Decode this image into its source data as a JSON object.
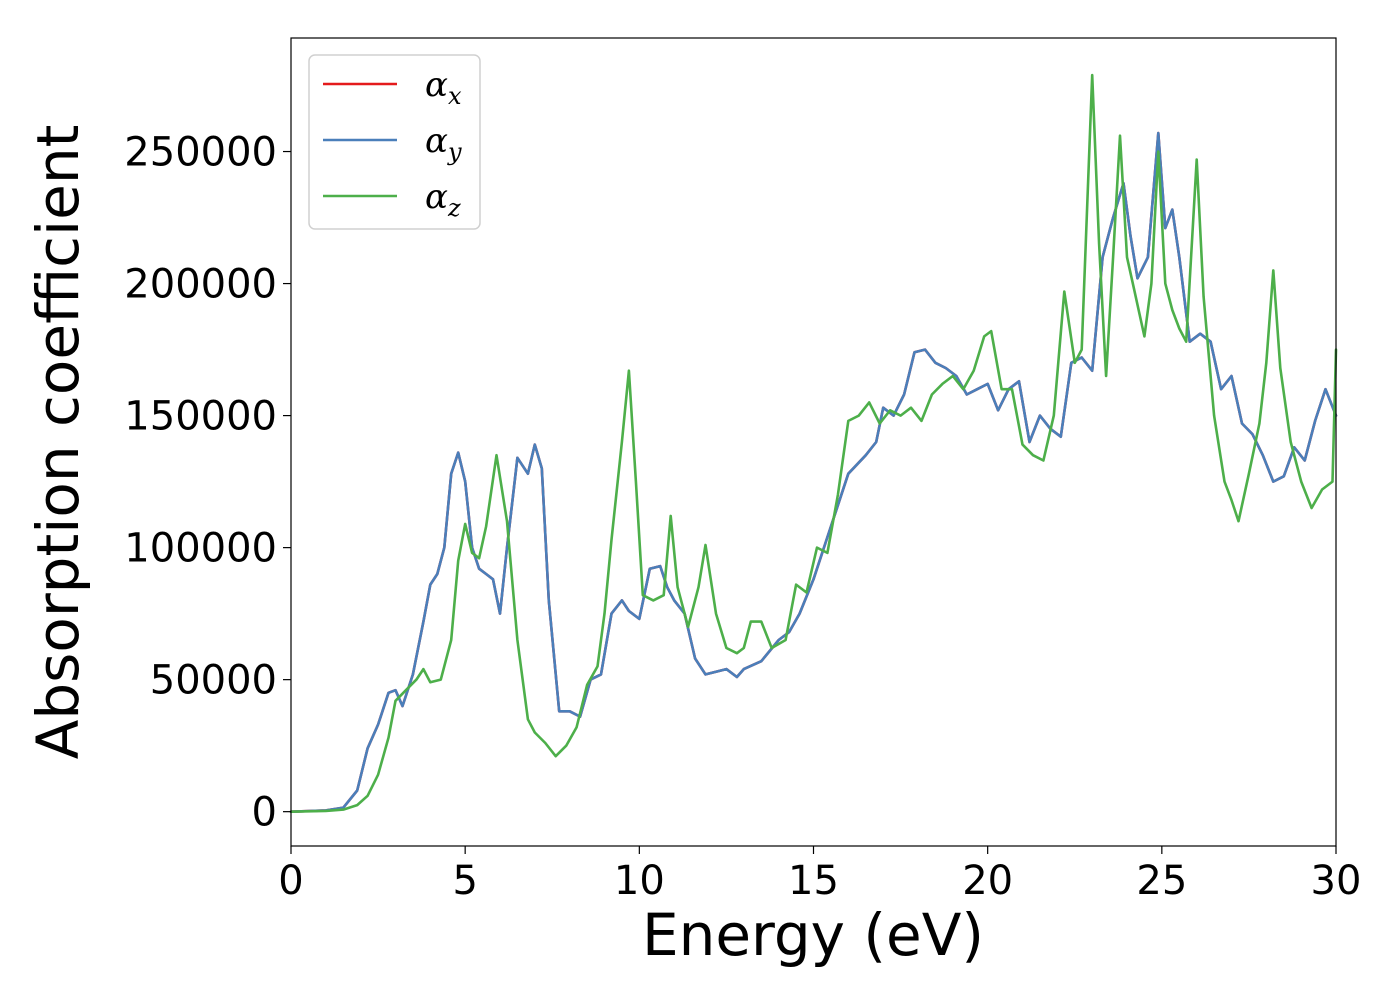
{
  "chart_data": {
    "type": "line",
    "title": "",
    "xlabel": "Energy (eV)",
    "ylabel": "Absorption coefficient",
    "xlim": [
      0,
      30
    ],
    "ylim": [
      -13000,
      293000
    ],
    "xticks": [
      0,
      5,
      10,
      15,
      20,
      25,
      30
    ],
    "xtick_labels": [
      "0",
      "5",
      "10",
      "15",
      "20",
      "25",
      "30"
    ],
    "yticks": [
      0,
      50000,
      100000,
      150000,
      200000,
      250000
    ],
    "ytick_labels": [
      "0",
      "50000",
      "100000",
      "150000",
      "200000",
      "250000"
    ],
    "grid": false,
    "legend_position": "upper-left",
    "colors": {
      "alpha_x": "#e41a1c",
      "alpha_y": "#4a7fba",
      "alpha_z": "#4daf4a"
    },
    "series": [
      {
        "name": "α_x",
        "legend_base": "α",
        "legend_sub": "x",
        "color": "#e41a1c",
        "x": [
          0,
          1,
          1.5,
          1.9,
          2.2,
          2.5,
          2.8,
          3.0,
          3.2,
          3.5,
          3.8,
          4.0,
          4.2,
          4.4,
          4.6,
          4.8,
          5.0,
          5.2,
          5.4,
          5.6,
          5.8,
          6.0,
          6.2,
          6.5,
          6.8,
          7.0,
          7.2,
          7.4,
          7.7,
          8.0,
          8.3,
          8.6,
          8.9,
          9.2,
          9.5,
          9.7,
          10.0,
          10.3,
          10.6,
          10.8,
          11.0,
          11.3,
          11.6,
          11.9,
          12.2,
          12.5,
          12.8,
          13.0,
          13.5,
          14.0,
          14.3,
          14.6,
          15.0,
          15.5,
          16.0,
          16.5,
          16.8,
          17.0,
          17.3,
          17.6,
          17.9,
          18.2,
          18.5,
          18.8,
          19.1,
          19.4,
          19.7,
          20.0,
          20.3,
          20.6,
          20.9,
          21.2,
          21.5,
          21.8,
          22.1,
          22.4,
          22.7,
          23.0,
          23.3,
          23.6,
          23.9,
          24.1,
          24.3,
          24.6,
          24.9,
          25.1,
          25.3,
          25.5,
          25.8,
          26.1,
          26.4,
          26.7,
          27.0,
          27.3,
          27.6,
          27.9,
          28.2,
          28.5,
          28.8,
          29.1,
          29.4,
          29.7,
          30.0
        ],
        "y": [
          0,
          500,
          1500,
          8000,
          24000,
          33000,
          45000,
          46000,
          40000,
          52000,
          72000,
          86000,
          90000,
          100000,
          128000,
          136000,
          125000,
          100000,
          92000,
          90000,
          88000,
          75000,
          100000,
          134000,
          128000,
          139000,
          130000,
          80000,
          38000,
          38000,
          36000,
          50000,
          52000,
          75000,
          80000,
          76000,
          73000,
          92000,
          93000,
          85000,
          80000,
          75000,
          58000,
          52000,
          53000,
          54000,
          51000,
          54000,
          57000,
          65000,
          68000,
          75000,
          88000,
          108000,
          128000,
          135000,
          140000,
          153000,
          150000,
          158000,
          174000,
          175000,
          170000,
          168000,
          165000,
          158000,
          160000,
          162000,
          152000,
          160000,
          163000,
          140000,
          150000,
          145000,
          142000,
          170000,
          172000,
          167000,
          210000,
          225000,
          238000,
          218000,
          202000,
          210000,
          257000,
          221000,
          228000,
          210000,
          178000,
          181000,
          178000,
          160000,
          165000,
          147000,
          143000,
          135000,
          125000,
          127000,
          138000,
          133000,
          148000,
          160000,
          150000
        ]
      },
      {
        "name": "α_y",
        "legend_base": "α",
        "legend_sub": "y",
        "color": "#4a7fba",
        "x": [
          0,
          1,
          1.5,
          1.9,
          2.2,
          2.5,
          2.8,
          3.0,
          3.2,
          3.5,
          3.8,
          4.0,
          4.2,
          4.4,
          4.6,
          4.8,
          5.0,
          5.2,
          5.4,
          5.6,
          5.8,
          6.0,
          6.2,
          6.5,
          6.8,
          7.0,
          7.2,
          7.4,
          7.7,
          8.0,
          8.3,
          8.6,
          8.9,
          9.2,
          9.5,
          9.7,
          10.0,
          10.3,
          10.6,
          10.8,
          11.0,
          11.3,
          11.6,
          11.9,
          12.2,
          12.5,
          12.8,
          13.0,
          13.5,
          14.0,
          14.3,
          14.6,
          15.0,
          15.5,
          16.0,
          16.5,
          16.8,
          17.0,
          17.3,
          17.6,
          17.9,
          18.2,
          18.5,
          18.8,
          19.1,
          19.4,
          19.7,
          20.0,
          20.3,
          20.6,
          20.9,
          21.2,
          21.5,
          21.8,
          22.1,
          22.4,
          22.7,
          23.0,
          23.3,
          23.6,
          23.9,
          24.1,
          24.3,
          24.6,
          24.9,
          25.1,
          25.3,
          25.5,
          25.8,
          26.1,
          26.4,
          26.7,
          27.0,
          27.3,
          27.6,
          27.9,
          28.2,
          28.5,
          28.8,
          29.1,
          29.4,
          29.7,
          30.0
        ],
        "y": [
          0,
          500,
          1500,
          8000,
          24000,
          33000,
          45000,
          46000,
          40000,
          52000,
          72000,
          86000,
          90000,
          100000,
          128000,
          136000,
          125000,
          100000,
          92000,
          90000,
          88000,
          75000,
          100000,
          134000,
          128000,
          139000,
          130000,
          80000,
          38000,
          38000,
          36000,
          50000,
          52000,
          75000,
          80000,
          76000,
          73000,
          92000,
          93000,
          85000,
          80000,
          75000,
          58000,
          52000,
          53000,
          54000,
          51000,
          54000,
          57000,
          65000,
          68000,
          75000,
          88000,
          108000,
          128000,
          135000,
          140000,
          153000,
          150000,
          158000,
          174000,
          175000,
          170000,
          168000,
          165000,
          158000,
          160000,
          162000,
          152000,
          160000,
          163000,
          140000,
          150000,
          145000,
          142000,
          170000,
          172000,
          167000,
          210000,
          225000,
          238000,
          218000,
          202000,
          210000,
          257000,
          221000,
          228000,
          210000,
          178000,
          181000,
          178000,
          160000,
          165000,
          147000,
          143000,
          135000,
          125000,
          127000,
          138000,
          133000,
          148000,
          160000,
          150000
        ]
      },
      {
        "name": "α_z",
        "legend_base": "α",
        "legend_sub": "z",
        "color": "#4daf4a",
        "x": [
          0,
          1,
          1.5,
          1.9,
          2.2,
          2.5,
          2.8,
          3.0,
          3.3,
          3.6,
          3.8,
          4.0,
          4.3,
          4.6,
          4.8,
          5.0,
          5.2,
          5.4,
          5.6,
          5.9,
          6.2,
          6.5,
          6.8,
          7.0,
          7.3,
          7.6,
          7.9,
          8.2,
          8.5,
          8.8,
          9.0,
          9.2,
          9.5,
          9.7,
          9.9,
          10.1,
          10.4,
          10.7,
          10.9,
          11.1,
          11.4,
          11.7,
          11.9,
          12.2,
          12.5,
          12.8,
          13.0,
          13.2,
          13.5,
          13.8,
          14.2,
          14.5,
          14.8,
          15.1,
          15.4,
          15.7,
          16.0,
          16.3,
          16.6,
          16.9,
          17.2,
          17.5,
          17.8,
          18.1,
          18.4,
          18.7,
          19.0,
          19.3,
          19.6,
          19.9,
          20.1,
          20.4,
          20.7,
          21.0,
          21.3,
          21.6,
          21.9,
          22.2,
          22.5,
          22.7,
          23.0,
          23.2,
          23.4,
          23.6,
          23.8,
          24.0,
          24.2,
          24.5,
          24.7,
          24.9,
          25.1,
          25.3,
          25.5,
          25.7,
          26.0,
          26.2,
          26.5,
          26.8,
          27.0,
          27.2,
          27.5,
          27.8,
          28.0,
          28.2,
          28.4,
          28.7,
          29.0,
          29.3,
          29.6,
          29.9,
          30.0
        ],
        "y": [
          0,
          300,
          800,
          2500,
          6000,
          14000,
          28000,
          42000,
          46000,
          50000,
          54000,
          49000,
          50000,
          65000,
          95000,
          109000,
          98000,
          96000,
          108000,
          135000,
          110000,
          65000,
          35000,
          30000,
          26000,
          21000,
          25000,
          32000,
          48000,
          55000,
          75000,
          103000,
          140000,
          167000,
          125000,
          82000,
          80000,
          82000,
          112000,
          85000,
          70000,
          85000,
          101000,
          75000,
          62000,
          60000,
          62000,
          72000,
          72000,
          62000,
          65000,
          86000,
          83000,
          100000,
          98000,
          120000,
          148000,
          150000,
          155000,
          147000,
          152000,
          150000,
          153000,
          148000,
          158000,
          162000,
          165000,
          160000,
          167000,
          180000,
          182000,
          160000,
          160000,
          139000,
          135000,
          133000,
          150000,
          197000,
          170000,
          175000,
          279000,
          215000,
          165000,
          210000,
          256000,
          210000,
          198000,
          180000,
          200000,
          250000,
          200000,
          190000,
          183000,
          178000,
          247000,
          195000,
          150000,
          125000,
          118000,
          110000,
          128000,
          147000,
          170000,
          205000,
          168000,
          140000,
          125000,
          115000,
          122000,
          125000,
          175000
        ]
      }
    ]
  }
}
